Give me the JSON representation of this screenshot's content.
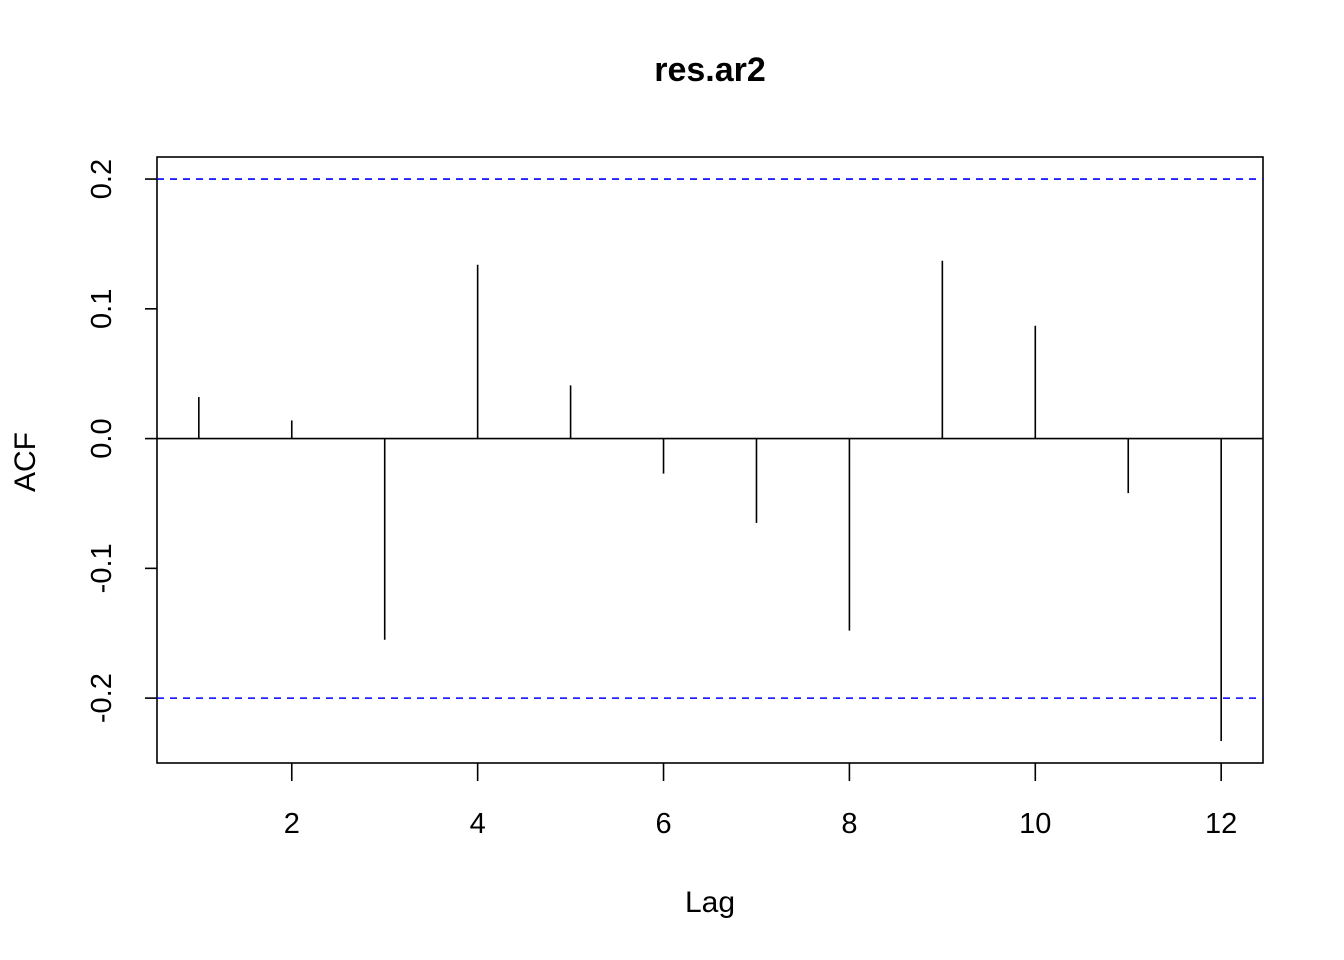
{
  "chart_data": {
    "type": "bar",
    "title": "res.ar2",
    "xlabel": "Lag",
    "ylabel": "ACF",
    "x": [
      1,
      2,
      3,
      4,
      5,
      6,
      7,
      8,
      9,
      10,
      11,
      12
    ],
    "values": [
      0.032,
      0.014,
      -0.155,
      0.134,
      0.041,
      -0.027,
      -0.065,
      -0.148,
      0.137,
      0.087,
      -0.042,
      -0.233
    ],
    "xlim": [
      0.55,
      12.45
    ],
    "ylim": [
      -0.25,
      0.217
    ],
    "x_ticks": [
      2,
      4,
      6,
      8,
      10,
      12
    ],
    "x_tick_labels": [
      "2",
      "4",
      "6",
      "8",
      "10",
      "12"
    ],
    "y_ticks": [
      -0.2,
      -0.1,
      0.0,
      0.1,
      0.2
    ],
    "y_tick_labels": [
      "-0.2",
      "-0.1",
      "0.0",
      "0.1",
      "0.2"
    ],
    "confidence_bounds": [
      0.2,
      -0.2
    ],
    "bound_color": "#0000ff",
    "bar_color": "#000000",
    "grid": false,
    "legend": "none"
  }
}
